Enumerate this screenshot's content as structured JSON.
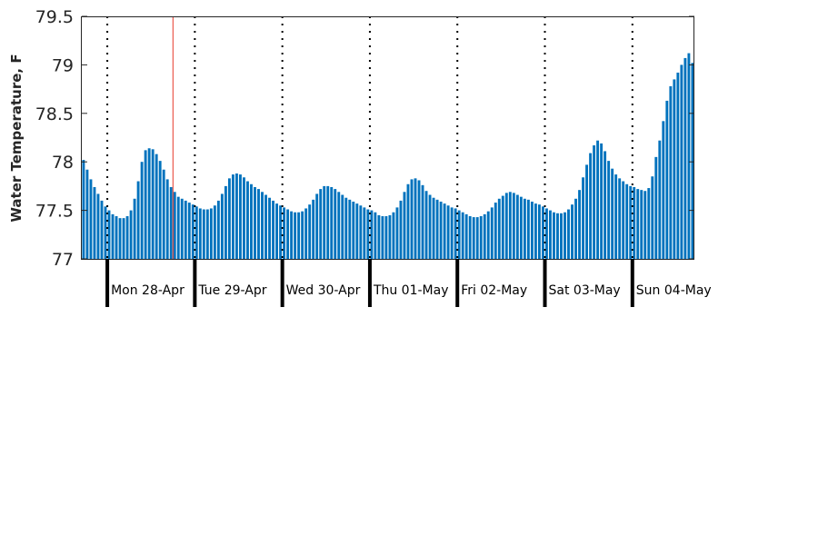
{
  "chart_data": {
    "type": "bar",
    "title": "",
    "xlabel": "",
    "ylabel": "Water Temperature, F",
    "ylim": [
      77,
      79.5
    ],
    "yticks": [
      "77",
      "77.5",
      "78",
      "78.5",
      "79",
      "79.5"
    ],
    "bar_color": "#0072bd",
    "current_time_marker_color": "#e8392a",
    "current_time": "2025-04-28 18:00",
    "day_labels": [
      "Mon 28-Apr",
      "Tue 29-Apr",
      "Wed 30-Apr",
      "Thu 01-May",
      "Fri 02-May",
      "Sat 03-May",
      "Sun 04-May"
    ],
    "day_starts": [
      "2025-04-28 00:00",
      "2025-04-29 00:00",
      "2025-04-30 00:00",
      "2025-05-01 00:00",
      "2025-05-02 00:00",
      "2025-05-03 00:00",
      "2025-05-04 00:00"
    ],
    "x_start": "2025-04-27 17:00",
    "interval_hours": 1,
    "values": [
      78.02,
      77.92,
      77.82,
      77.74,
      77.67,
      77.6,
      77.54,
      77.5,
      77.46,
      77.44,
      77.42,
      77.42,
      77.44,
      77.5,
      77.62,
      77.8,
      78.0,
      78.12,
      78.14,
      78.13,
      78.08,
      78.01,
      77.92,
      77.82,
      77.74,
      77.69,
      77.64,
      77.62,
      77.6,
      77.58,
      77.56,
      77.54,
      77.52,
      77.51,
      77.51,
      77.52,
      77.55,
      77.6,
      77.67,
      77.75,
      77.83,
      77.87,
      77.88,
      77.87,
      77.84,
      77.8,
      77.77,
      77.74,
      77.72,
      77.69,
      77.66,
      77.63,
      77.6,
      77.57,
      77.55,
      77.53,
      77.51,
      77.49,
      77.48,
      77.48,
      77.49,
      77.52,
      77.56,
      77.61,
      77.67,
      77.72,
      77.75,
      77.75,
      77.74,
      77.72,
      77.69,
      77.66,
      77.63,
      77.61,
      77.59,
      77.57,
      77.55,
      77.53,
      77.51,
      77.5,
      77.48,
      77.45,
      77.44,
      77.44,
      77.45,
      77.48,
      77.53,
      77.6,
      77.69,
      77.77,
      77.82,
      77.83,
      77.81,
      77.76,
      77.7,
      77.66,
      77.63,
      77.61,
      77.59,
      77.57,
      77.55,
      77.53,
      77.52,
      77.5,
      77.48,
      77.46,
      77.44,
      77.43,
      77.43,
      77.44,
      77.46,
      77.49,
      77.53,
      77.58,
      77.62,
      77.65,
      77.68,
      77.69,
      77.68,
      77.66,
      77.64,
      77.62,
      77.61,
      77.59,
      77.57,
      77.56,
      77.54,
      77.52,
      77.5,
      77.48,
      77.47,
      77.47,
      77.48,
      77.51,
      77.56,
      77.62,
      77.71,
      77.84,
      77.97,
      78.09,
      78.17,
      78.22,
      78.19,
      78.11,
      78.01,
      77.93,
      77.87,
      77.83,
      77.8,
      77.77,
      77.75,
      77.74,
      77.72,
      77.71,
      77.7,
      77.73,
      77.85,
      78.05,
      78.22,
      78.42,
      78.63,
      78.78,
      78.85,
      78.92,
      79.0,
      79.07,
      79.12,
      79.02
    ]
  }
}
